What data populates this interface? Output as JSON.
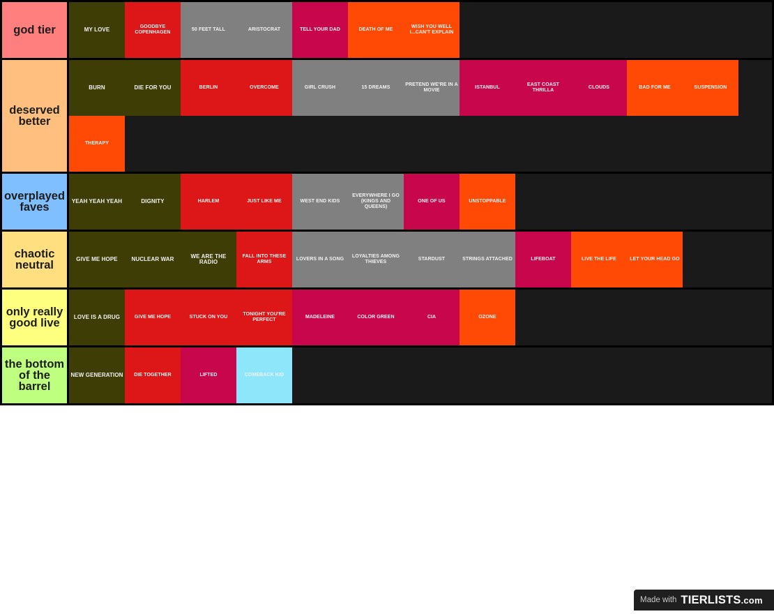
{
  "colors": {
    "dark_olive": "#3e3d06",
    "red": "#dd1717",
    "gray": "#808080",
    "crimson": "#c8064b",
    "orange": "#ff4a05",
    "light_blue": "#8ee6fb",
    "row_background": "#1a1a1a",
    "border": "#000000"
  },
  "tiers": [
    {
      "label": "god tier",
      "color": "#ff7f7f",
      "items": [
        {
          "text": "MY LOVE",
          "color": "dark_olive"
        },
        {
          "text": "GOODBYE COPENHAGEN",
          "color": "red"
        },
        {
          "text": "50 FEET TALL",
          "color": "gray"
        },
        {
          "text": "ARISTOCRAT",
          "color": "gray"
        },
        {
          "text": "TELL YOUR DAD",
          "color": "crimson"
        },
        {
          "text": "DEATH OF ME",
          "color": "orange"
        },
        {
          "text": "WISH YOU WELL I...CAN'T EXPLAIN",
          "color": "orange"
        }
      ]
    },
    {
      "label": "deserved better",
      "color": "#ffbf7f",
      "items": [
        {
          "text": "BURN",
          "color": "dark_olive"
        },
        {
          "text": "DIE FOR YOU",
          "color": "dark_olive"
        },
        {
          "text": "BERLIN",
          "color": "red"
        },
        {
          "text": "OVERCOME",
          "color": "red"
        },
        {
          "text": "GIRL CRUSH",
          "color": "gray"
        },
        {
          "text": "15 DREAMS",
          "color": "gray"
        },
        {
          "text": "PRETEND WE'RE IN A MOVIE",
          "color": "gray"
        },
        {
          "text": "ISTANBUL",
          "color": "crimson"
        },
        {
          "text": "EAST COAST THRILLA",
          "color": "crimson"
        },
        {
          "text": "CLOUDS",
          "color": "crimson"
        },
        {
          "text": "BAD FOR ME",
          "color": "orange"
        },
        {
          "text": "SUSPENSION",
          "color": "orange"
        },
        {
          "text": "THERAPY",
          "color": "orange"
        }
      ]
    },
    {
      "label": "overplayed faves",
      "color": "#7fbfff",
      "items": [
        {
          "text": "YEAH YEAH YEAH",
          "color": "dark_olive"
        },
        {
          "text": "DIGNITY",
          "color": "dark_olive"
        },
        {
          "text": "HARLEM",
          "color": "red"
        },
        {
          "text": "JUST LIKE ME",
          "color": "red"
        },
        {
          "text": "WEST END KIDS",
          "color": "gray"
        },
        {
          "text": "EVERYWHERE I GO (KINGS AND QUEENS)",
          "color": "gray"
        },
        {
          "text": "ONE OF US",
          "color": "crimson"
        },
        {
          "text": "UNSTOPPABLE",
          "color": "orange"
        }
      ]
    },
    {
      "label": "chaotic neutral",
      "color": "#ffdf80",
      "items": [
        {
          "text": "GIVE ME HOPE",
          "color": "dark_olive"
        },
        {
          "text": "NUCLEAR WAR",
          "color": "dark_olive"
        },
        {
          "text": "WE ARE THE RADIO",
          "color": "dark_olive"
        },
        {
          "text": "FALL INTO THESE ARMS",
          "color": "red"
        },
        {
          "text": "LOVERS IN A SONG",
          "color": "gray"
        },
        {
          "text": "LOYALTIES AMONG THIEVES",
          "color": "gray"
        },
        {
          "text": "STARDUST",
          "color": "gray"
        },
        {
          "text": "STRINGS ATTACHED",
          "color": "gray"
        },
        {
          "text": "LIFEBOAT",
          "color": "crimson"
        },
        {
          "text": "LIVE THE LIFE",
          "color": "orange"
        },
        {
          "text": "LET YOUR HEAD GO",
          "color": "orange"
        }
      ]
    },
    {
      "label": "only really good live",
      "color": "#ffff7f",
      "items": [
        {
          "text": "LOVE IS A DRUG",
          "color": "dark_olive"
        },
        {
          "text": "GIVE ME HOPE",
          "color": "red"
        },
        {
          "text": "STUCK ON YOU",
          "color": "red"
        },
        {
          "text": "TONIGHT YOU'RE PERFECT",
          "color": "red"
        },
        {
          "text": "MADELEINE",
          "color": "crimson"
        },
        {
          "text": "COLOR GREEN",
          "color": "crimson"
        },
        {
          "text": "CIA",
          "color": "crimson"
        },
        {
          "text": "OZONE",
          "color": "orange"
        }
      ]
    },
    {
      "label": "the bottom of the barrel",
      "color": "#bfff7f",
      "items": [
        {
          "text": "NEW GENERATION",
          "color": "dark_olive"
        },
        {
          "text": "DIE TOGETHER",
          "color": "red"
        },
        {
          "text": "LIFTED",
          "color": "crimson"
        },
        {
          "text": "COMEBACK KID",
          "color": "light_blue"
        }
      ]
    }
  ],
  "watermark": {
    "made_with": "Made with",
    "logo": "TIERLISTS",
    "logo_suffix": ".com"
  }
}
